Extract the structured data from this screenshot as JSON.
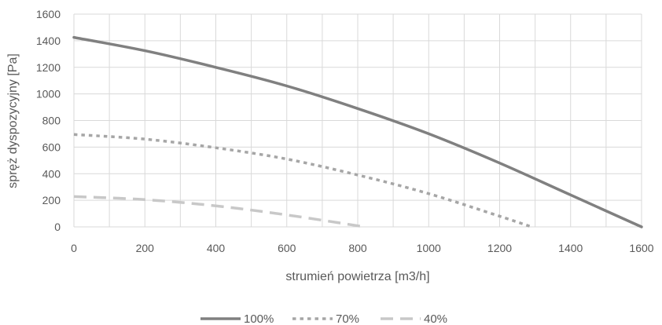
{
  "chart_data": {
    "type": "line",
    "title": "",
    "xlabel": "strumień powietrza [m3/h]",
    "ylabel": "spręż dyspozycyjny [Pa]",
    "xlim": [
      0,
      1600
    ],
    "ylim": [
      0,
      1600
    ],
    "x_ticks": [
      "0",
      "200",
      "400",
      "600",
      "800",
      "1000",
      "1200",
      "1400",
      "1600"
    ],
    "y_ticks": [
      "0",
      "200",
      "400",
      "600",
      "800",
      "1000",
      "1200",
      "1400",
      "1600"
    ],
    "grid": true,
    "legend_position": "bottom",
    "series": [
      {
        "name": "100%",
        "style": "solid",
        "color": "#808080",
        "x": [
          0,
          200,
          400,
          600,
          800,
          1000,
          1200,
          1400,
          1600
        ],
        "y": [
          1425,
          1325,
          1200,
          1060,
          890,
          700,
          480,
          240,
          0
        ]
      },
      {
        "name": "70%",
        "style": "dotted",
        "color": "#a6a6a6",
        "x": [
          0,
          200,
          400,
          600,
          800,
          1000,
          1200,
          1290
        ],
        "y": [
          695,
          660,
          595,
          510,
          390,
          250,
          80,
          0
        ]
      },
      {
        "name": "40%",
        "style": "dashed",
        "color": "#c8c8c8",
        "x": [
          0,
          200,
          400,
          600,
          820
        ],
        "y": [
          228,
          205,
          158,
          90,
          0
        ]
      }
    ]
  }
}
